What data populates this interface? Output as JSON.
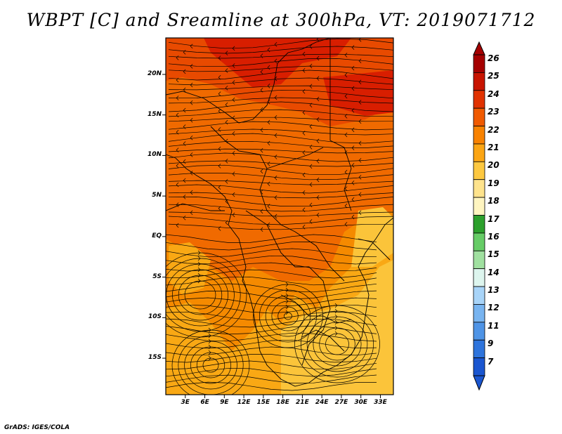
{
  "title": "WBPT [C] and Sreamline at 300hPa, VT: 2019071712",
  "credit": "GrADS: IGES/COLA",
  "map": {
    "lat_labels": [
      "20N",
      "15N",
      "10N",
      "5N",
      "EQ",
      "5S",
      "10S",
      "15S"
    ],
    "lat_values": [
      20,
      15,
      10,
      5,
      0,
      -5,
      -10,
      -15
    ],
    "lon_labels": [
      "3E",
      "6E",
      "9E",
      "12E",
      "15E",
      "18E",
      "21E",
      "24E",
      "27E",
      "30E",
      "33E"
    ],
    "lon_values": [
      3,
      6,
      9,
      12,
      15,
      18,
      21,
      24,
      27,
      30,
      33
    ],
    "lat_range": [
      -19.5,
      24.5
    ],
    "lon_range": [
      0,
      35
    ]
  },
  "colorbar": {
    "labels": [
      "26",
      "25",
      "24",
      "23",
      "22",
      "21",
      "20",
      "19",
      "18",
      "17",
      "16",
      "15",
      "14",
      "13",
      "12",
      "11",
      "9",
      "7"
    ],
    "colors": [
      "#a50000",
      "#c81400",
      "#e13200",
      "#f05a00",
      "#f88200",
      "#fba514",
      "#fdc840",
      "#fee38c",
      "#fff5c0",
      "#2ca02c",
      "#66cc66",
      "#a0e0a0",
      "#ddf5ee",
      "#a8d4f8",
      "#78b4f0",
      "#4f94e6",
      "#2e74dc",
      "#1a56d0"
    ],
    "top_color": "#a50000",
    "bottom_color": "#1a56d0"
  },
  "field_colors": {
    "c25": "#d81e00",
    "c24": "#e84a00",
    "c23": "#f06a00",
    "c22": "#f58a00",
    "c21": "#f9a814",
    "c20": "#fbc43a"
  }
}
